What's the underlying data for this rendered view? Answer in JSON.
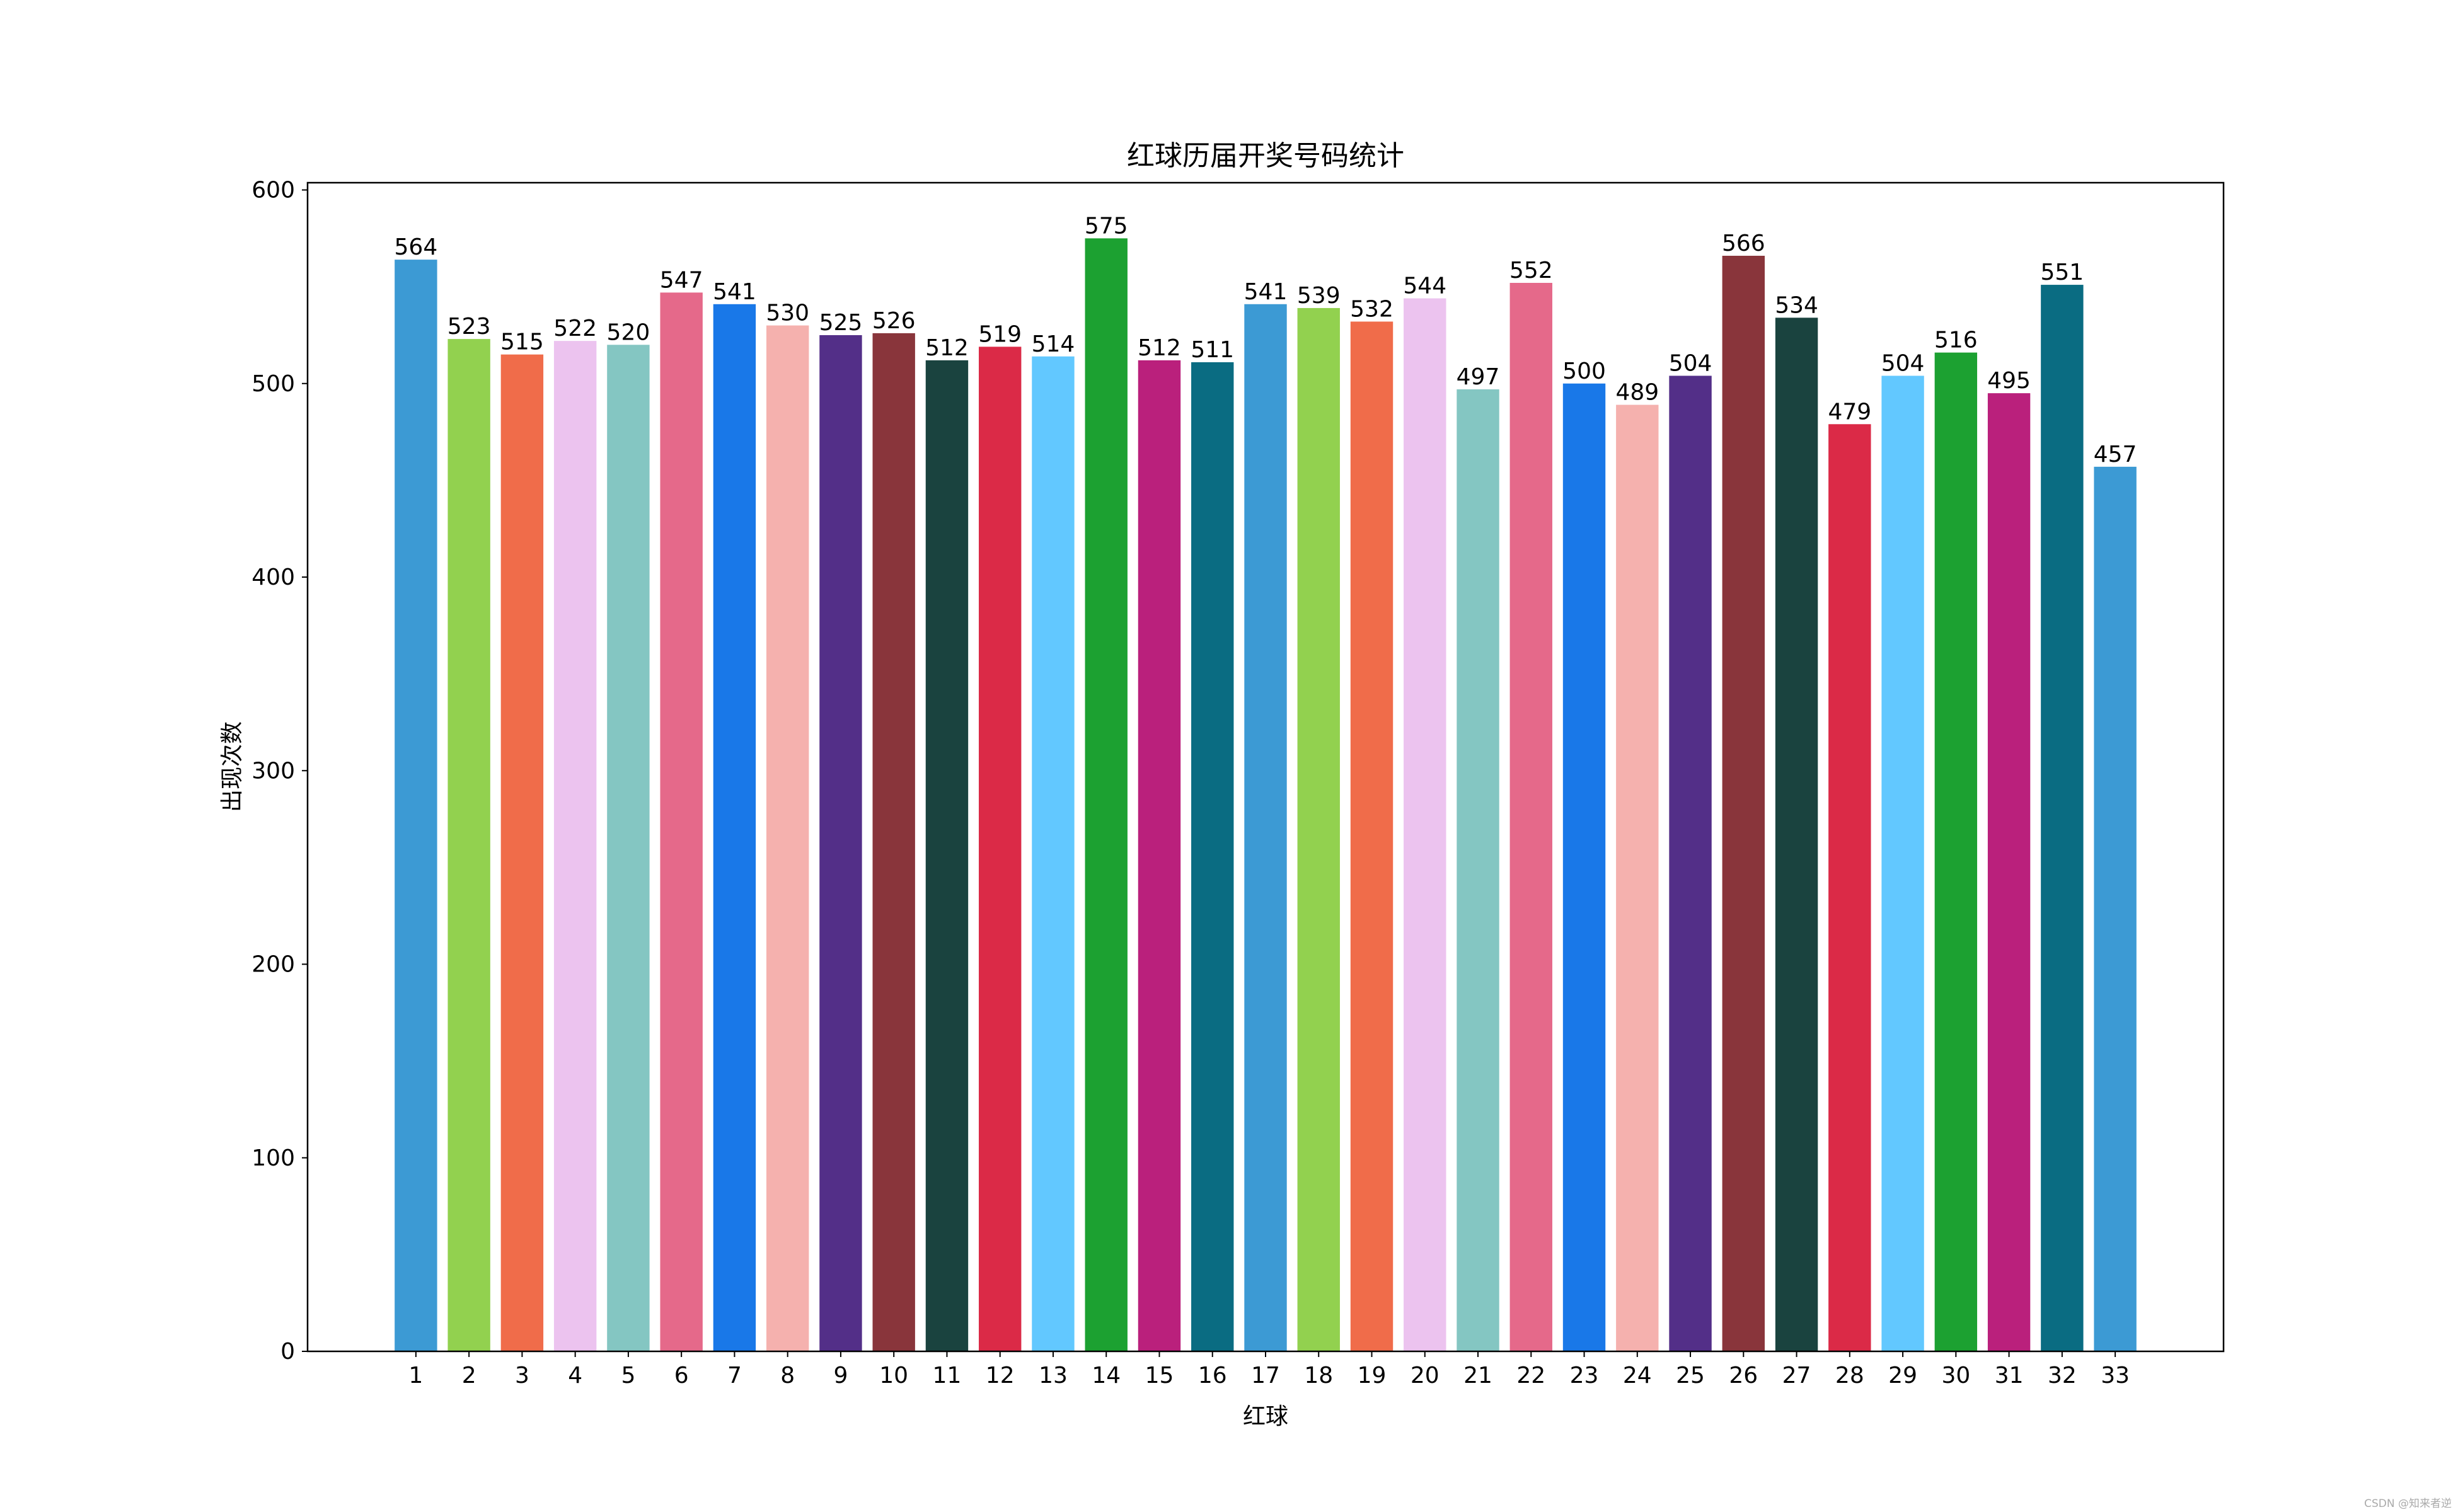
{
  "chart_data": {
    "type": "bar",
    "title": "红球历届开奖号码统计",
    "xlabel": "红球",
    "ylabel": "出现次数",
    "categories": [
      "1",
      "2",
      "3",
      "4",
      "5",
      "6",
      "7",
      "8",
      "9",
      "10",
      "11",
      "12",
      "13",
      "14",
      "15",
      "16",
      "17",
      "18",
      "19",
      "20",
      "21",
      "22",
      "23",
      "24",
      "25",
      "26",
      "27",
      "28",
      "29",
      "30",
      "31",
      "32",
      "33"
    ],
    "values": [
      564,
      523,
      515,
      522,
      520,
      547,
      541,
      530,
      525,
      526,
      512,
      519,
      514,
      575,
      512,
      511,
      541,
      539,
      532,
      544,
      497,
      552,
      500,
      489,
      504,
      566,
      534,
      479,
      504,
      516,
      495,
      551,
      457
    ],
    "colors": [
      "#3c9ad4",
      "#92d14f",
      "#f06c4a",
      "#ecc3ef",
      "#84c6c2",
      "#e5698a",
      "#1978e8",
      "#f5b1ae",
      "#532f88",
      "#89353b",
      "#1a433f",
      "#db2a47",
      "#62c8ff",
      "#1ca131",
      "#ba207c",
      "#0a6c82"
    ],
    "yticks": [
      0,
      100,
      200,
      300,
      400,
      500,
      600
    ],
    "ylim": [
      0,
      603.75
    ],
    "xlim": [
      -1.04,
      35.04
    ],
    "grid": false,
    "data_labels": true
  },
  "watermark": "CSDN @知来者逆"
}
